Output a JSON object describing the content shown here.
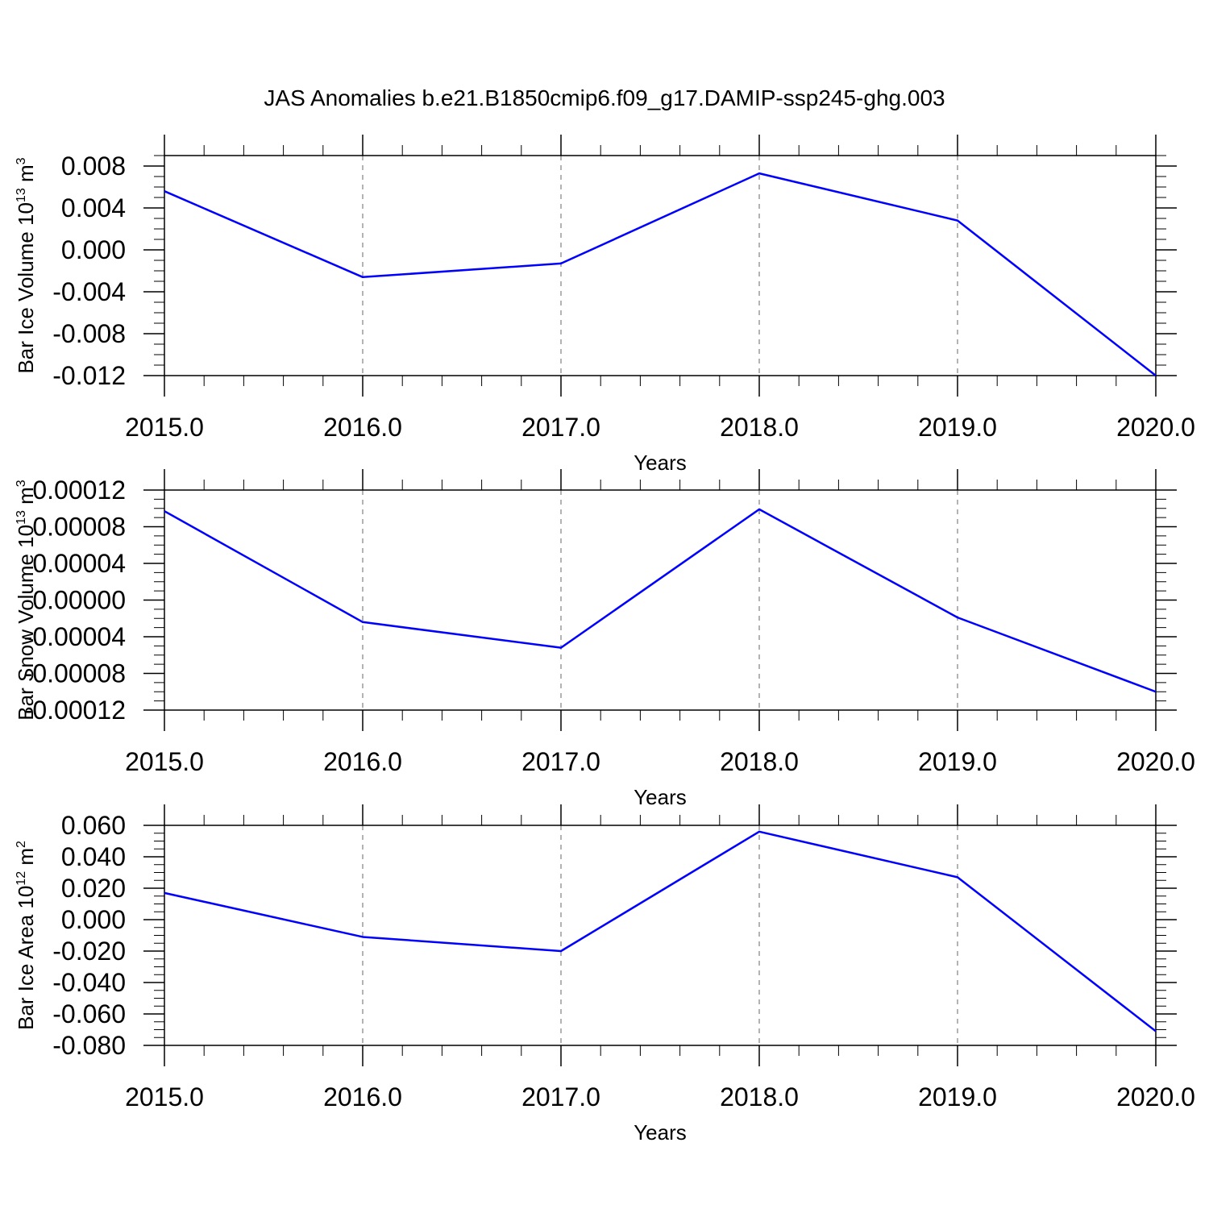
{
  "title": "JAS Anomalies b.e21.B1850cmip6.f09_g17.DAMIP-ssp245-ghg.003",
  "line_color": "#0000ff",
  "chart_data": [
    {
      "type": "line",
      "ylabel": {
        "text": "Bar Ice Volume 10",
        "sup": "13",
        "unit": " m",
        "unit_sup": "3"
      },
      "xlabel": "Years",
      "x": [
        2015,
        2016,
        2017,
        2018,
        2019,
        2020
      ],
      "x_tick_labels": [
        "2015.0",
        "2016.0",
        "2017.0",
        "2018.0",
        "2019.0",
        "2020.0"
      ],
      "series": [
        {
          "values": [
            0.0056,
            -0.0026,
            -0.0013,
            0.0073,
            0.0028,
            -0.012
          ]
        }
      ],
      "ylim": [
        -0.012,
        0.009
      ],
      "y_ticks": [
        -0.012,
        -0.008,
        -0.004,
        0.0,
        0.004,
        0.008
      ],
      "y_tick_labels": [
        "-0.012",
        "-0.008",
        "-0.004",
        "0.000",
        "0.004",
        "0.008"
      ],
      "grid": "vertical dashed"
    },
    {
      "type": "line",
      "ylabel": {
        "text": "Bar Snow Volume 10",
        "sup": "13",
        "unit": " m",
        "unit_sup": "3"
      },
      "xlabel": "Years",
      "x": [
        2015,
        2016,
        2017,
        2018,
        2019,
        2020
      ],
      "x_tick_labels": [
        "2015.0",
        "2016.0",
        "2017.0",
        "2018.0",
        "2019.0",
        "2020.0"
      ],
      "series": [
        {
          "values": [
            9.7e-05,
            -2.4e-05,
            -5.2e-05,
            9.9e-05,
            -1.9e-05,
            -0.0001
          ]
        }
      ],
      "ylim": [
        -0.00012,
        0.00012
      ],
      "y_ticks": [
        -0.00012,
        -8e-05,
        -4e-05,
        0.0,
        4e-05,
        8e-05,
        0.00012
      ],
      "y_tick_labels": [
        "-0.00012",
        "-0.00008",
        "-0.00004",
        "0.00000",
        "0.00004",
        "0.00008",
        "0.00012"
      ],
      "grid": "vertical dashed"
    },
    {
      "type": "line",
      "ylabel": {
        "text": "Bar Ice Area 10",
        "sup": "12",
        "unit": " m",
        "unit_sup": "2"
      },
      "xlabel": "Years",
      "x": [
        2015,
        2016,
        2017,
        2018,
        2019,
        2020
      ],
      "x_tick_labels": [
        "2015.0",
        "2016.0",
        "2017.0",
        "2018.0",
        "2019.0",
        "2020.0"
      ],
      "series": [
        {
          "values": [
            0.017,
            -0.011,
            -0.02,
            0.056,
            0.027,
            -0.071
          ]
        }
      ],
      "ylim": [
        -0.08,
        0.06
      ],
      "y_ticks": [
        -0.08,
        -0.06,
        -0.04,
        -0.02,
        0.0,
        0.02,
        0.04,
        0.06
      ],
      "y_tick_labels": [
        "-0.080",
        "-0.060",
        "-0.040",
        "-0.020",
        "0.000",
        "0.020",
        "0.040",
        "0.060"
      ],
      "grid": "vertical dashed"
    }
  ]
}
